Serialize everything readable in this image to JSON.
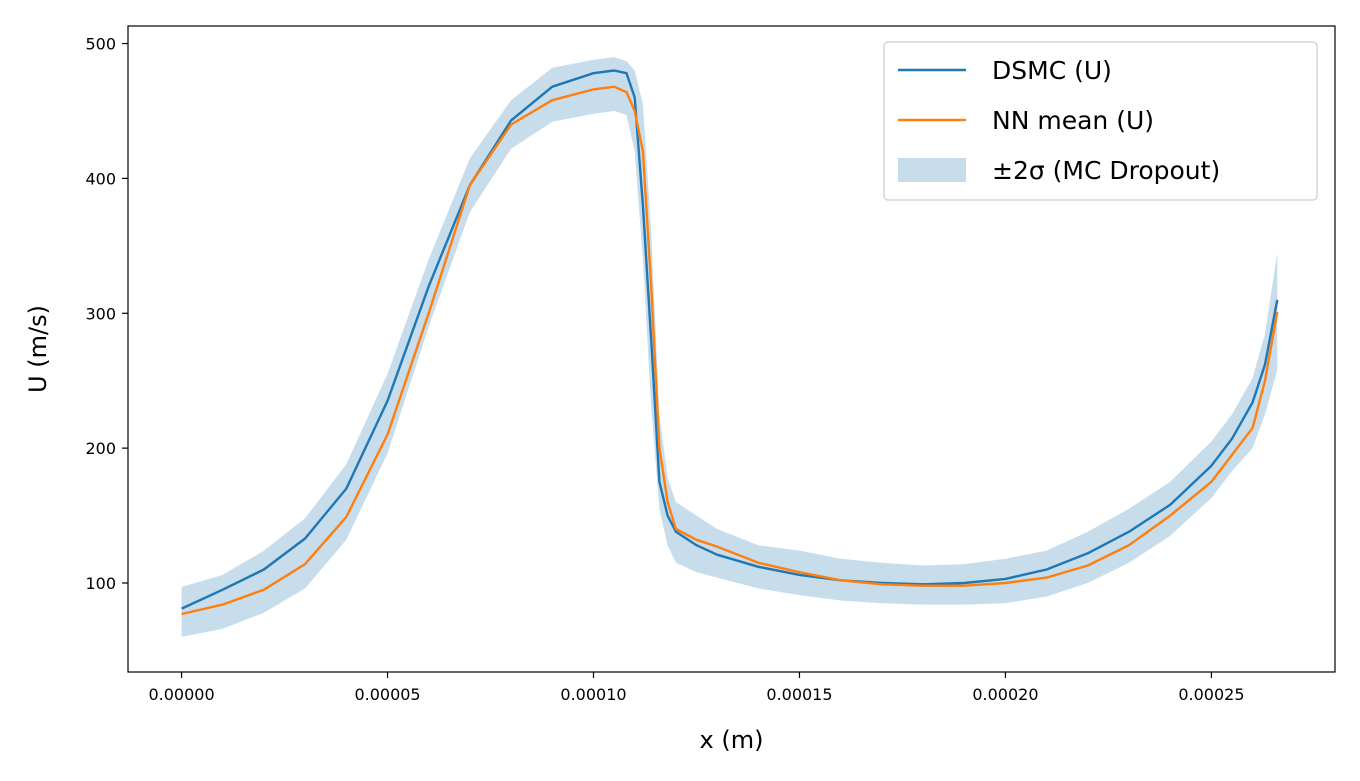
{
  "chart_data": {
    "type": "line",
    "title": "",
    "xlabel": "x (m)",
    "ylabel": "U (m/s)",
    "xlim": [
      -1.3e-05,
      0.00028
    ],
    "ylim": [
      34,
      513
    ],
    "xticks": [
      0,
      5e-05,
      0.0001,
      0.00015,
      0.0002,
      0.00025
    ],
    "xtick_labels": [
      "0.00000",
      "0.00005",
      "0.00010",
      "0.00015",
      "0.00020",
      "0.00025"
    ],
    "yticks": [
      100,
      200,
      300,
      400,
      500
    ],
    "ytick_labels": [
      "100",
      "200",
      "300",
      "400",
      "500"
    ],
    "grid": false,
    "legend_position": "top-right",
    "x": [
      0,
      1e-05,
      2e-05,
      3e-05,
      4e-05,
      5e-05,
      6e-05,
      7e-05,
      8e-05,
      9e-05,
      0.0001,
      0.000105,
      0.000108,
      0.00011,
      0.000112,
      0.000114,
      0.000116,
      0.000118,
      0.00012,
      0.000125,
      0.00013,
      0.00014,
      0.00015,
      0.00016,
      0.00017,
      0.00018,
      0.00019,
      0.0002,
      0.00021,
      0.00022,
      0.00023,
      0.00024,
      0.00025,
      0.000255,
      0.00026,
      0.000263,
      0.000266
    ],
    "series": [
      {
        "name": "DSMC (U)",
        "color": "#1f77b4",
        "values": [
          81,
          95,
          110,
          133,
          170,
          235,
          320,
          395,
          443,
          468,
          478,
          480,
          478,
          460,
          380,
          280,
          175,
          150,
          138,
          128,
          121,
          112,
          106,
          102,
          100,
          99,
          100,
          103,
          110,
          122,
          138,
          158,
          187,
          207,
          234,
          262,
          310
        ]
      },
      {
        "name": "NN mean (U)",
        "color": "#ff7f0e",
        "values": [
          77,
          84,
          95,
          114,
          149,
          210,
          300,
          395,
          440,
          458,
          466,
          468,
          464,
          450,
          420,
          320,
          200,
          160,
          140,
          132,
          127,
          115,
          108,
          102,
          99,
          98,
          98,
          100,
          104,
          113,
          128,
          150,
          175,
          195,
          215,
          250,
          301
        ]
      },
      {
        "name": "±2σ (MC Dropout)",
        "type": "band",
        "color": "#1f77b4",
        "opacity": 0.25,
        "lower": [
          60,
          66,
          78,
          96,
          132,
          196,
          290,
          375,
          422,
          442,
          448,
          450,
          447,
          420,
          340,
          230,
          155,
          128,
          115,
          108,
          104,
          96,
          91,
          87,
          85,
          84,
          84,
          85,
          90,
          100,
          115,
          135,
          163,
          183,
          200,
          225,
          258
        ],
        "upper": [
          97,
          106,
          124,
          148,
          188,
          255,
          340,
          415,
          458,
          482,
          488,
          490,
          487,
          480,
          455,
          360,
          225,
          178,
          160,
          150,
          140,
          128,
          124,
          118,
          115,
          113,
          114,
          118,
          124,
          138,
          155,
          175,
          205,
          225,
          252,
          285,
          345
        ]
      }
    ]
  }
}
